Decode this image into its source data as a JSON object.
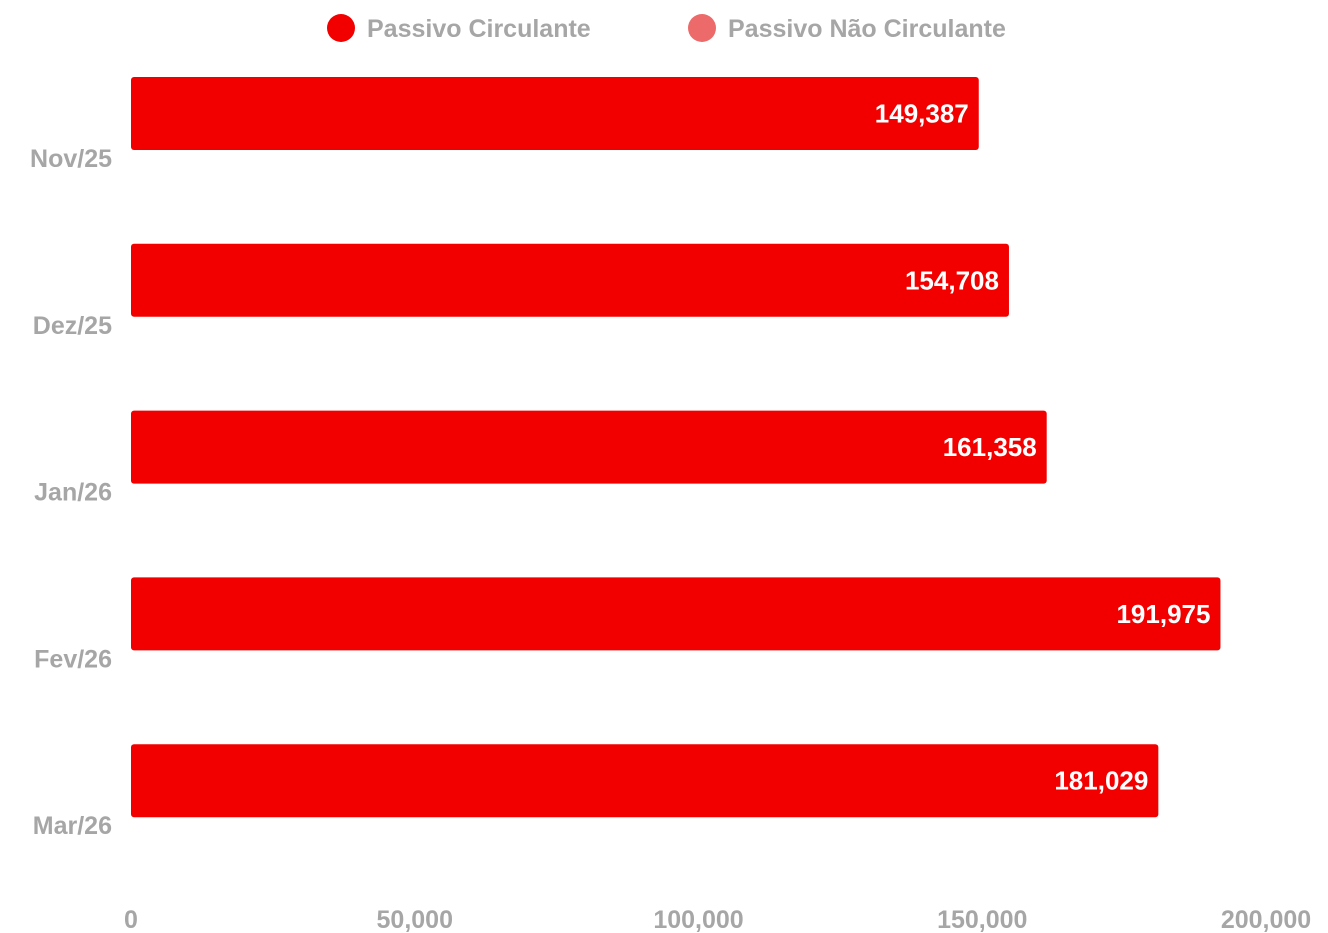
{
  "chart_data": {
    "type": "bar",
    "orientation": "horizontal",
    "categories": [
      "Nov/25",
      "Dez/25",
      "Jan/26",
      "Fev/26",
      "Mar/26"
    ],
    "series": [
      {
        "name": "Passivo Circulante",
        "color": "#f20000",
        "values": [
          149387,
          154708,
          161358,
          191975,
          181029
        ],
        "labels": [
          "149,387",
          "154,708",
          "161,358",
          "191,975",
          "181,029"
        ]
      },
      {
        "name": "Passivo Não Circulante",
        "color": "#ec6a6a",
        "values": [
          0,
          0,
          0,
          0,
          0
        ]
      }
    ],
    "xlim": [
      0,
      200000
    ],
    "x_ticks": [
      0,
      50000,
      100000,
      150000,
      200000
    ],
    "x_tick_labels": [
      "0",
      "50,000",
      "100,000",
      "150,000",
      "200,000"
    ],
    "legend_position": "top",
    "grid": false
  }
}
